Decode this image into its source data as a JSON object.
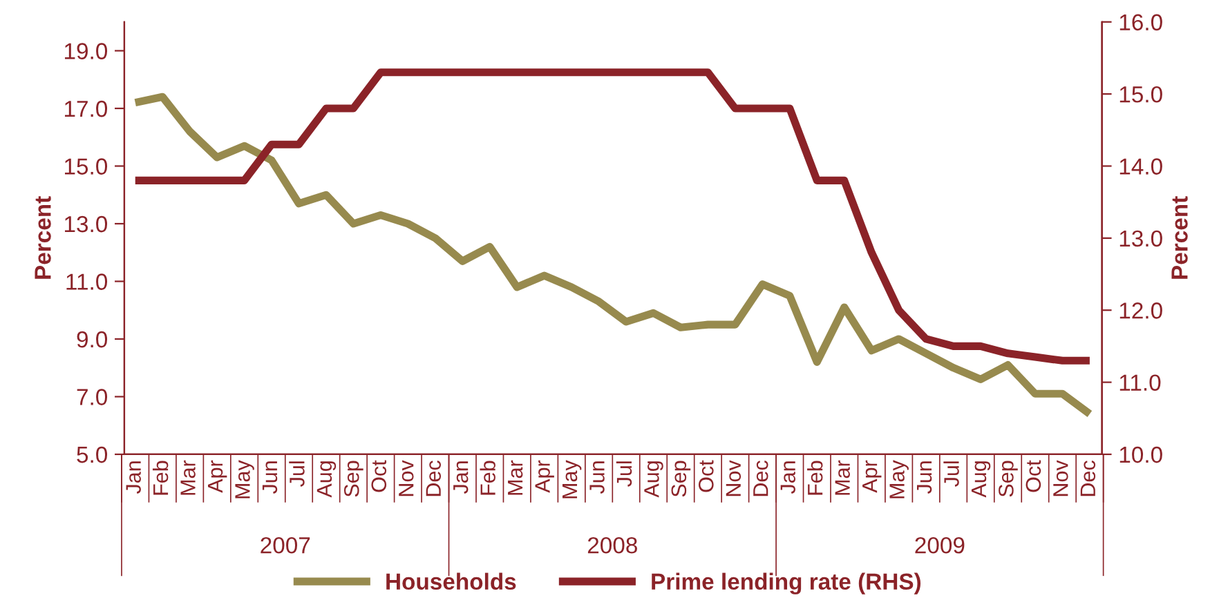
{
  "chart_data": {
    "type": "line",
    "categories": [
      "Jan",
      "Feb",
      "Mar",
      "Apr",
      "May",
      "Jun",
      "Jul",
      "Aug",
      "Sep",
      "Oct",
      "Nov",
      "Dec",
      "Jan",
      "Feb",
      "Mar",
      "Apr",
      "May",
      "Jun",
      "Jul",
      "Aug",
      "Sep",
      "Oct",
      "Nov",
      "Dec",
      "Jan",
      "Feb",
      "Mar",
      "Apr",
      "May",
      "Jun",
      "Jul",
      "Aug",
      "Sep",
      "Oct",
      "Nov",
      "Dec"
    ],
    "series": [
      {
        "name": "Households",
        "color": "#978a4e",
        "values": [
          17.2,
          17.4,
          16.2,
          15.3,
          15.7,
          15.2,
          13.7,
          14.0,
          13.0,
          13.3,
          13.0,
          12.5,
          11.7,
          12.2,
          10.8,
          11.2,
          10.8,
          10.3,
          9.6,
          9.9,
          9.4,
          9.5,
          9.5,
          10.9,
          10.5,
          8.2,
          10.1,
          8.6,
          9.0,
          8.5,
          8.0,
          7.6,
          8.1,
          7.1,
          7.1,
          6.4
        ]
      },
      {
        "name": "Prime lending rate (RHS)",
        "color": "#8b2328",
        "axis": "y2",
        "values": [
          13.8,
          13.8,
          13.8,
          13.8,
          13.8,
          14.3,
          14.3,
          14.8,
          14.8,
          15.3,
          15.3,
          15.3,
          15.3,
          15.3,
          15.3,
          15.3,
          15.3,
          15.3,
          15.3,
          15.3,
          15.3,
          15.3,
          14.8,
          14.8,
          14.8,
          13.8,
          13.8,
          12.8,
          12.0,
          11.6,
          11.5,
          11.5,
          11.4,
          11.35,
          11.3,
          11.3
        ]
      }
    ],
    "annotations": [
      "2007",
      "2008",
      "2009"
    ],
    "ylabel": "Percent",
    "y2label": "Percent",
    "ylim": [
      5,
      20
    ],
    "yticks": [
      {
        "value": 5,
        "label": "5.0"
      },
      {
        "value": 7,
        "label": "7.0"
      },
      {
        "value": 9,
        "label": "9.0"
      },
      {
        "value": 11,
        "label": "11.0"
      },
      {
        "value": 13,
        "label": "13.0"
      },
      {
        "value": 15,
        "label": "15.0"
      },
      {
        "value": 17,
        "label": "17.0"
      },
      {
        "value": 19,
        "label": "19.0"
      }
    ],
    "y2lim": [
      10,
      16
    ],
    "y2ticks": [
      {
        "value": 10,
        "label": "10.0"
      },
      {
        "value": 11,
        "label": "11.0"
      },
      {
        "value": 12,
        "label": "12.0"
      },
      {
        "value": 13,
        "label": "13.0"
      },
      {
        "value": 14,
        "label": "14.0"
      },
      {
        "value": 15,
        "label": "15.0"
      },
      {
        "value": 16,
        "label": "16.0"
      }
    ],
    "legend": "bottom",
    "grid": false,
    "marker": "none",
    "line_style": "solid"
  }
}
